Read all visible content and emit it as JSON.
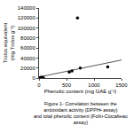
{
  "chart_data": {
    "type": "scatter",
    "xlabel": "Phenolic content (mg GAE g⁻¹)",
    "ylabel": "Trolox equivalent (mg Trolox g⁻¹)",
    "caption": "Figure 1- Correlation between the antioxidant activity (DPPH• assay)\n and total phenolic content (Folin-Ciocalteau assay)",
    "xlim": [
      0,
      1500
    ],
    "ylim": [
      0,
      140000
    ],
    "xticks": [
      0,
      500,
      1000,
      1500
    ],
    "yticks": [
      0,
      20000,
      40000,
      60000,
      80000,
      100000,
      120000,
      140000
    ],
    "grid": false,
    "series": [
      {
        "type": "scatter",
        "color": "#000000",
        "x": [
          20,
          30,
          50,
          60,
          80,
          550,
          600,
          700,
          750,
          1250
        ],
        "values": [
          500,
          1500,
          800,
          1200,
          600,
          12000,
          14000,
          120000,
          20000,
          22000
        ]
      },
      {
        "type": "line",
        "color": "#555555",
        "x": [
          0,
          1500
        ],
        "values": [
          2000,
          36000
        ]
      }
    ]
  }
}
